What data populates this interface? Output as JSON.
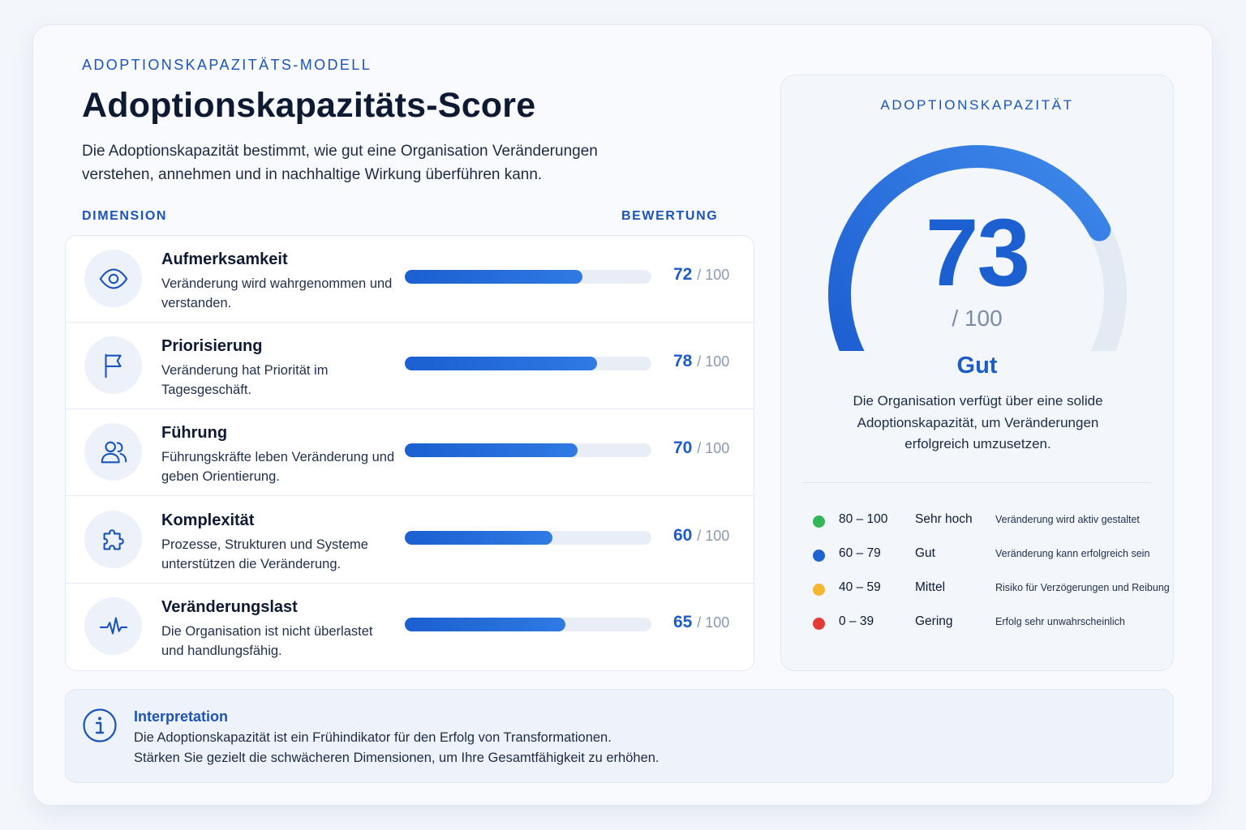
{
  "header": {
    "eyebrow": "ADOPTIONSKAPAZITÄTS-MODELL",
    "title": "Adoptionskapazitäts-Score",
    "description": "Die Adoptionskapazität bestimmt, wie gut eine Organisation Veränderungen verstehen, annehmen und in nachhaltige Wirkung überführen kann."
  },
  "columns": {
    "dimension": "DIMENSION",
    "rating": "BEWERTUNG"
  },
  "dimensions": [
    {
      "title": "Aufmerksamkeit",
      "description": "Veränderung wird wahrgenommen und verstanden.",
      "score": 72,
      "max": "/ 100",
      "icon": "eye-icon"
    },
    {
      "title": "Priorisierung",
      "description": "Veränderung hat Priorität im Tagesgeschäft.",
      "score": 78,
      "max": "/ 100",
      "icon": "flag-icon"
    },
    {
      "title": "Führung",
      "description": "Führungskräfte leben Veränderung und geben Orientierung.",
      "score": 70,
      "max": "/ 100",
      "icon": "users-icon"
    },
    {
      "title": "Komplexität",
      "description": "Prozesse, Strukturen und Systeme unterstützen die Veränderung.",
      "score": 60,
      "max": "/ 100",
      "icon": "puzzle-icon"
    },
    {
      "title": "Veränderungslast",
      "description": "Die Organisation ist nicht überlastet und handlungsfähig.",
      "score": 65,
      "max": "/ 100",
      "icon": "pulse-icon"
    }
  ],
  "gauge": {
    "eyebrow": "ADOPTIONSKAPAZITÄT",
    "value": 73,
    "value_text": "73",
    "max_text": "/ 100",
    "rating": "Gut",
    "description": "Die Organisation verfügt über eine solide Adoptionskapazität, um Veränderungen erfolgreich umzusetzen."
  },
  "legend": [
    {
      "range": "80 – 100",
      "label": "Sehr hoch",
      "description": "Veränderung wird aktiv gestaltet",
      "color": "#34b558"
    },
    {
      "range": "60 – 79",
      "label": "Gut",
      "description": "Veränderung kann erfolgreich sein",
      "color": "#1f63d2"
    },
    {
      "range": "40 – 59",
      "label": "Mittel",
      "description": "Risiko für Verzögerungen und Reibung",
      "color": "#f5b731"
    },
    {
      "range": "0 – 39",
      "label": "Gering",
      "description": "Erfolg sehr unwahrscheinlich",
      "color": "#e53935"
    }
  ],
  "interpretation": {
    "title": "Interpretation",
    "line1": "Die Adoptionskapazität ist ein Frühindikator für den Erfolg von Transformationen.",
    "line2": "Stärken Sie gezielt die schwächeren Dimensionen, um Ihre Gesamtfähigkeit zu erhöhen."
  },
  "colors": {
    "accent": "#1c5cc9",
    "track": "#e3e9f2"
  }
}
